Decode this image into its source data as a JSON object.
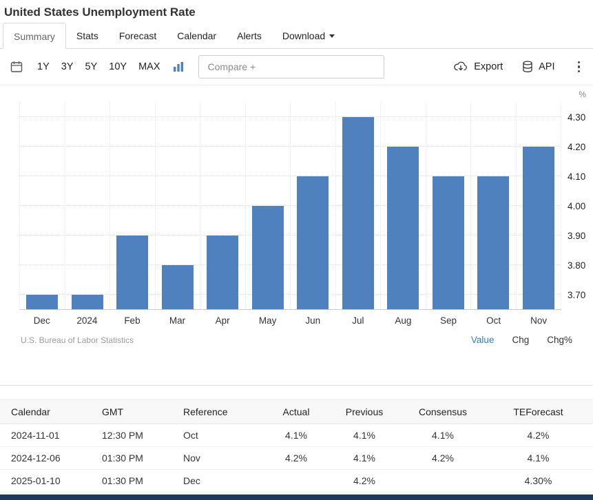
{
  "header": {
    "title": "United States Unemployment Rate"
  },
  "tabs": [
    {
      "label": "Summary",
      "active": true
    },
    {
      "label": "Stats",
      "active": false
    },
    {
      "label": "Forecast",
      "active": false
    },
    {
      "label": "Calendar",
      "active": false
    },
    {
      "label": "Alerts",
      "active": false
    },
    {
      "label": "Download",
      "active": false,
      "caret": true
    }
  ],
  "toolbar": {
    "ranges": [
      "1Y",
      "3Y",
      "5Y",
      "10Y",
      "MAX"
    ],
    "compare_placeholder": "Compare +",
    "export_label": "Export",
    "api_label": "API"
  },
  "chart": {
    "unit": "%",
    "source": "U.S. Bureau of Labor Statistics",
    "modes": [
      {
        "label": "Value",
        "active": true
      },
      {
        "label": "Chg",
        "active": false
      },
      {
        "label": "Chg%",
        "active": false
      }
    ]
  },
  "chart_data": {
    "type": "bar",
    "title": "United States Unemployment Rate",
    "categories": [
      "Dec",
      "2024",
      "Feb",
      "Mar",
      "Apr",
      "May",
      "Jun",
      "Jul",
      "Aug",
      "Sep",
      "Oct",
      "Nov"
    ],
    "values": [
      3.7,
      3.7,
      3.9,
      3.8,
      3.9,
      4.0,
      4.1,
      4.3,
      4.2,
      4.1,
      4.1,
      4.2
    ],
    "xlabel": "",
    "ylabel": "%",
    "ylim": [
      3.65,
      4.35
    ],
    "yticks": [
      "3.70",
      "3.80",
      "3.90",
      "4.00",
      "4.10",
      "4.20",
      "4.30"
    ],
    "grid": true,
    "legend_position": "none",
    "bar_color": "#4e81bd",
    "source": "U.S. Bureau of Labor Statistics"
  },
  "table": {
    "headers": [
      "Calendar",
      "GMT",
      "Reference",
      "Actual",
      "Previous",
      "Consensus",
      "TEForecast"
    ],
    "rows": [
      [
        "2024-11-01",
        "12:30 PM",
        "Oct",
        "4.1%",
        "4.1%",
        "4.1%",
        "4.2%"
      ],
      [
        "2024-12-06",
        "01:30 PM",
        "Nov",
        "4.2%",
        "4.1%",
        "4.2%",
        "4.1%"
      ],
      [
        "2025-01-10",
        "01:30 PM",
        "Dec",
        "",
        "4.2%",
        "",
        "4.30%"
      ]
    ]
  },
  "colors": {
    "bar": "#4e81bd",
    "active_link": "#2f7fc1",
    "footer_bar": "#1e3a5f"
  }
}
